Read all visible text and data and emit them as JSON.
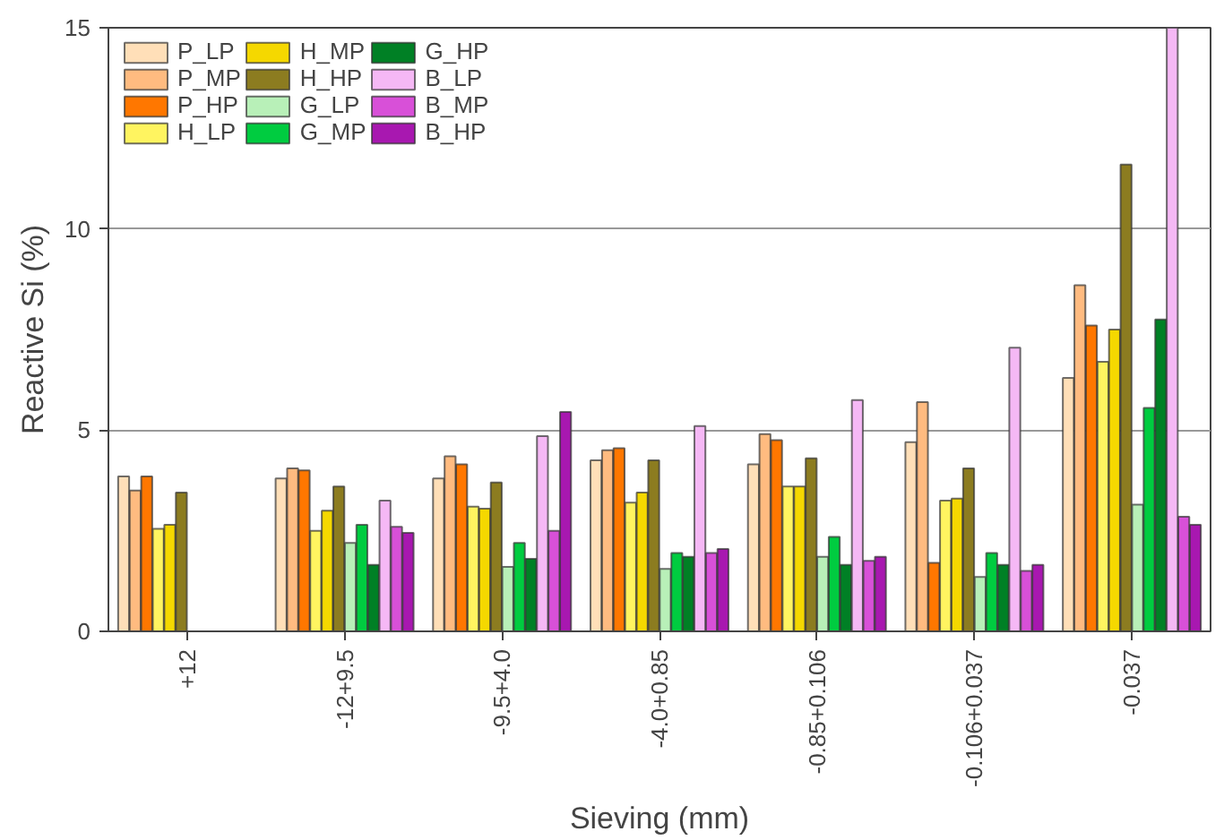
{
  "chart_data": {
    "type": "bar",
    "xlabel": "Sieving (mm)",
    "ylabel": "Reactive Si (%)",
    "categories": [
      "+12",
      "-12+9.5",
      "-9.5+4.0",
      "-4.0+0.85",
      "-0.85+0.106",
      "-0.106+0.037",
      "-0.037"
    ],
    "ylim": [
      0,
      15
    ],
    "yticks": [
      0,
      5,
      10,
      15
    ],
    "grid": "y",
    "legend": "top left",
    "series": [
      {
        "name": "P_LP",
        "color": "#ffdfb8",
        "values": [
          3.85,
          3.8,
          3.8,
          4.25,
          4.15,
          4.7,
          6.3
        ]
      },
      {
        "name": "P_MP",
        "color": "#ffbb80",
        "values": [
          3.5,
          4.05,
          4.35,
          4.5,
          4.9,
          5.7,
          8.6
        ]
      },
      {
        "name": "P_HP",
        "color": "#ff7700",
        "values": [
          3.85,
          4.0,
          4.15,
          4.55,
          4.75,
          1.7,
          7.6
        ]
      },
      {
        "name": "H_LP",
        "color": "#fff460",
        "values": [
          2.55,
          2.5,
          3.1,
          3.2,
          3.6,
          3.25,
          6.7
        ]
      },
      {
        "name": "H_MP",
        "color": "#f5d800",
        "values": [
          2.65,
          3.0,
          3.05,
          3.45,
          3.6,
          3.3,
          7.5
        ]
      },
      {
        "name": "H_HP",
        "color": "#8c7c20",
        "values": [
          3.45,
          3.6,
          3.7,
          4.25,
          4.3,
          4.05,
          11.6
        ]
      },
      {
        "name": "G_LP",
        "color": "#b8f0b8",
        "values": [
          null,
          2.2,
          1.6,
          1.55,
          1.85,
          1.35,
          3.15
        ]
      },
      {
        "name": "G_MP",
        "color": "#00cc40",
        "values": [
          null,
          2.65,
          2.2,
          1.95,
          2.35,
          1.95,
          5.55
        ]
      },
      {
        "name": "G_HP",
        "color": "#008025",
        "values": [
          null,
          1.65,
          1.8,
          1.85,
          1.65,
          1.65,
          7.75
        ]
      },
      {
        "name": "B_LP",
        "color": "#f5b8f5",
        "values": [
          null,
          3.25,
          4.85,
          5.1,
          5.75,
          7.05,
          15
        ]
      },
      {
        "name": "B_MP",
        "color": "#d850d8",
        "values": [
          null,
          2.6,
          2.5,
          1.95,
          1.75,
          1.5,
          2.85
        ]
      },
      {
        "name": "B_HP",
        "color": "#a818b0",
        "values": [
          null,
          2.45,
          5.45,
          2.05,
          1.85,
          1.65,
          2.65
        ]
      }
    ]
  }
}
